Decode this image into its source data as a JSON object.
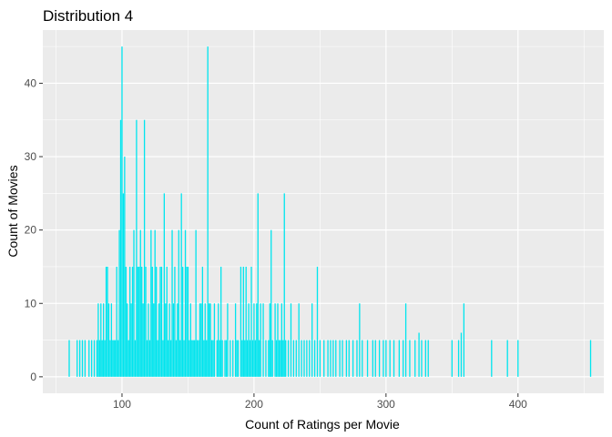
{
  "chart_data": {
    "type": "bar",
    "title": "Distribution 4",
    "xlabel": "Count of Ratings per Movie",
    "ylabel": "Count of Movies",
    "xlim": [
      40,
      465
    ],
    "ylim": [
      -2.25,
      47.25
    ],
    "x_ticks": [
      100,
      200,
      300,
      400
    ],
    "y_ticks": [
      0,
      10,
      20,
      30,
      40
    ],
    "grid": true,
    "legend": "none",
    "colors": {
      "bars": "#00e5ee",
      "panel": "#ebebeb",
      "grid": "#ffffff",
      "tick_text": "#4d4d4d"
    },
    "x": [
      60,
      66,
      68,
      70,
      72,
      75,
      77,
      79,
      81,
      82,
      83,
      84,
      85,
      86,
      87,
      88,
      89,
      90,
      91,
      92,
      93,
      94,
      95,
      96,
      97,
      98,
      99,
      100,
      101,
      102,
      103,
      104,
      105,
      106,
      107,
      108,
      109,
      110,
      111,
      112,
      113,
      114,
      115,
      116,
      117,
      118,
      119,
      120,
      121,
      122,
      123,
      124,
      125,
      126,
      127,
      128,
      129,
      130,
      131,
      132,
      133,
      134,
      135,
      136,
      137,
      138,
      139,
      140,
      141,
      142,
      143,
      144,
      145,
      146,
      147,
      148,
      149,
      150,
      151,
      152,
      153,
      154,
      155,
      156,
      157,
      158,
      159,
      160,
      161,
      162,
      163,
      164,
      165,
      166,
      167,
      168,
      169,
      170,
      172,
      173,
      174,
      175,
      176,
      178,
      179,
      180,
      182,
      184,
      186,
      187,
      188,
      190,
      191,
      192,
      193,
      194,
      195,
      196,
      197,
      198,
      199,
      200,
      201,
      202,
      203,
      204,
      205,
      207,
      209,
      211,
      212,
      213,
      214,
      216,
      217,
      218,
      219,
      220,
      221,
      222,
      223,
      224,
      226,
      228,
      230,
      232,
      234,
      236,
      238,
      240,
      242,
      244,
      246,
      248,
      250,
      253,
      256,
      258,
      260,
      262,
      265,
      267,
      270,
      272,
      275,
      278,
      280,
      282,
      286,
      290,
      292,
      295,
      298,
      300,
      303,
      306,
      310,
      313,
      315,
      318,
      322,
      325,
      327,
      330,
      332,
      350,
      355,
      357,
      359,
      380,
      392,
      400,
      455
    ],
    "values": [
      5,
      5,
      5,
      5,
      5,
      5,
      5,
      5,
      5,
      10,
      5,
      10,
      5,
      10,
      5,
      15,
      15,
      10,
      5,
      10,
      5,
      5,
      5,
      15,
      5,
      20,
      35,
      45,
      25,
      30,
      15,
      10,
      5,
      15,
      10,
      15,
      20,
      5,
      35,
      15,
      15,
      20,
      15,
      10,
      35,
      15,
      5,
      10,
      5,
      20,
      15,
      10,
      20,
      15,
      5,
      10,
      15,
      15,
      5,
      25,
      10,
      15,
      5,
      10,
      5,
      20,
      10,
      15,
      5,
      10,
      20,
      5,
      25,
      15,
      5,
      20,
      15,
      15,
      5,
      10,
      5,
      5,
      5,
      20,
      5,
      5,
      10,
      10,
      15,
      5,
      10,
      5,
      45,
      10,
      10,
      5,
      5,
      10,
      5,
      10,
      5,
      15,
      5,
      5,
      5,
      10,
      5,
      5,
      10,
      5,
      5,
      15,
      5,
      15,
      5,
      15,
      5,
      10,
      5,
      15,
      5,
      10,
      5,
      10,
      25,
      5,
      10,
      10,
      5,
      5,
      10,
      20,
      5,
      10,
      5,
      10,
      5,
      5,
      10,
      5,
      25,
      5,
      5,
      10,
      5,
      5,
      10,
      5,
      5,
      5,
      5,
      10,
      5,
      15,
      5,
      5,
      5,
      5,
      5,
      5,
      5,
      5,
      5,
      5,
      5,
      5,
      10,
      5,
      5,
      5,
      5,
      5,
      5,
      5,
      5,
      5,
      5,
      5,
      10,
      5,
      5,
      6,
      5,
      5,
      5,
      5,
      5,
      6,
      10,
      5,
      5,
      5,
      5
    ]
  }
}
